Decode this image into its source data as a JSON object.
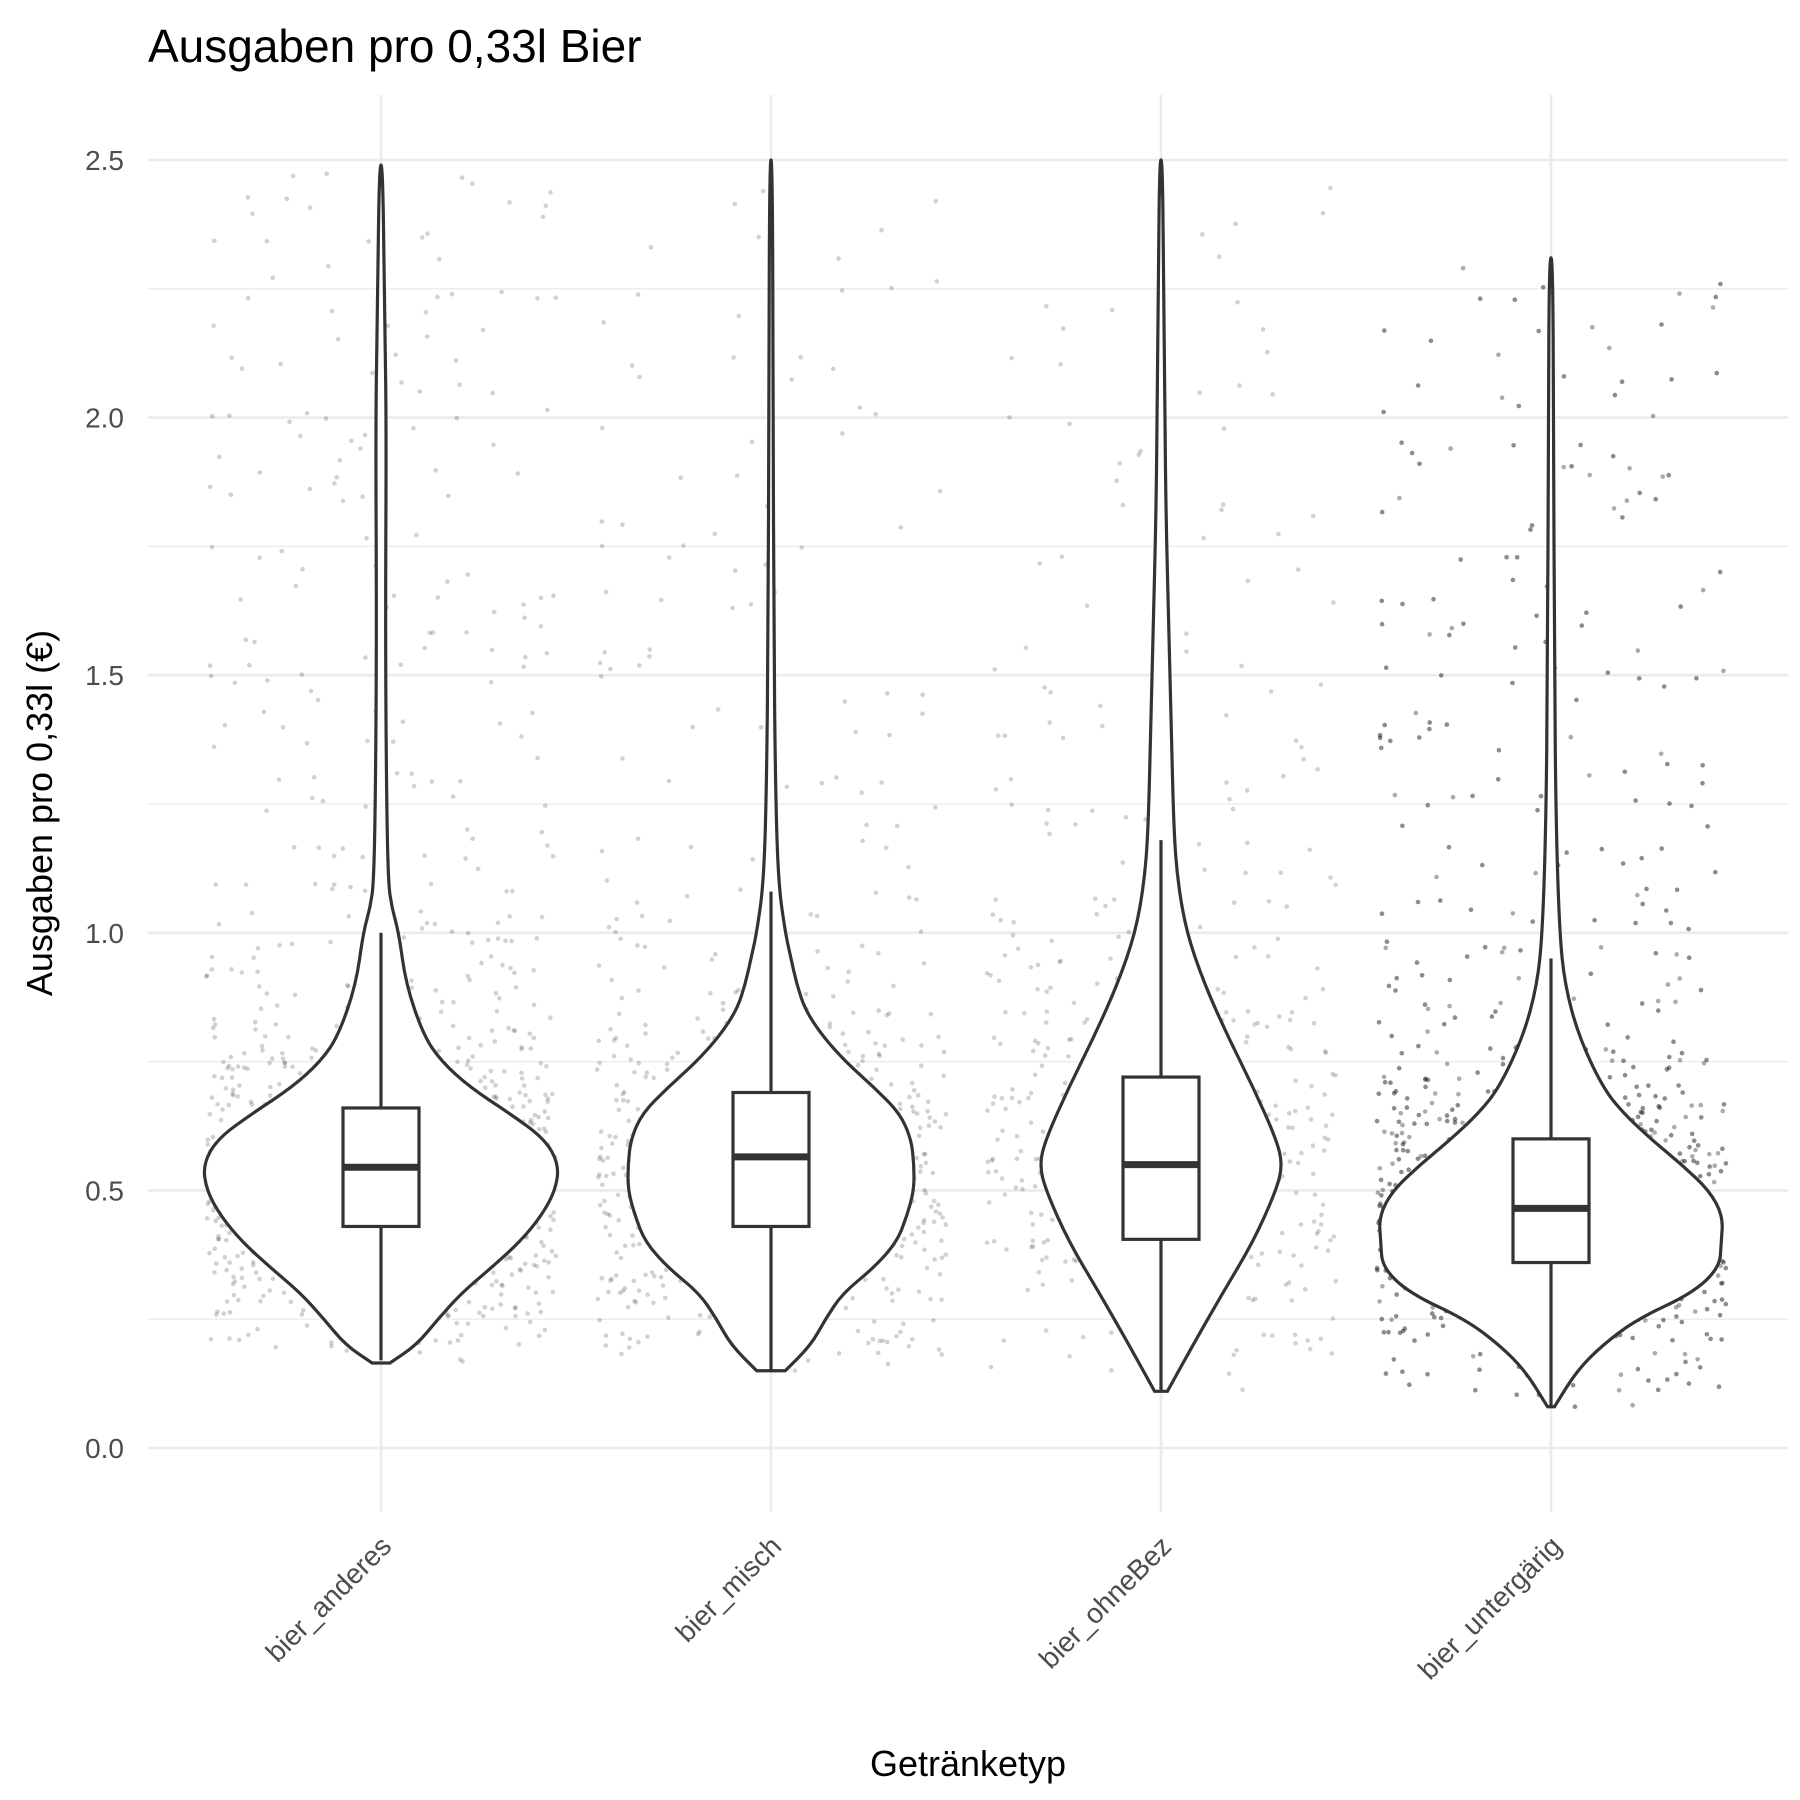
{
  "chart_data": {
    "type": "violin",
    "title": "Ausgaben pro 0,33l Bier",
    "xlabel": "Getränketyp",
    "ylabel": "Ausgaben pro 0,33l (€)",
    "ylim": [
      -0.12,
      2.62
    ],
    "yticks": [
      0.0,
      0.5,
      1.0,
      1.5,
      2.0,
      2.5
    ],
    "ytick_labels": [
      "0.0",
      "0.5",
      "1.0",
      "1.5",
      "2.0",
      "2.5"
    ],
    "grid": true,
    "categories": [
      "bier_anderes",
      "bier_misch",
      "bier_ohneBez",
      "bier_untergärig"
    ],
    "overlays": [
      "violin",
      "boxplot",
      "jittered points"
    ],
    "series": [
      {
        "category": "bier_anderes",
        "box": {
          "whisker_low": 0.17,
          "q1": 0.43,
          "median": 0.545,
          "q3": 0.66,
          "whisker_high": 1.0
        },
        "violin_range": [
          0.165,
          2.49
        ],
        "violin_profile": [
          [
            0.165,
            0.05
          ],
          [
            0.2,
            0.2
          ],
          [
            0.25,
            0.32
          ],
          [
            0.3,
            0.45
          ],
          [
            0.35,
            0.62
          ],
          [
            0.4,
            0.78
          ],
          [
            0.45,
            0.9
          ],
          [
            0.5,
            0.98
          ],
          [
            0.55,
            1.0
          ],
          [
            0.6,
            0.92
          ],
          [
            0.65,
            0.72
          ],
          [
            0.7,
            0.5
          ],
          [
            0.75,
            0.34
          ],
          [
            0.8,
            0.24
          ],
          [
            0.9,
            0.14
          ],
          [
            1.0,
            0.1
          ],
          [
            1.05,
            0.06
          ],
          [
            1.1,
            0.04
          ],
          [
            1.3,
            0.03
          ],
          [
            1.6,
            0.025
          ],
          [
            2.0,
            0.03
          ],
          [
            2.2,
            0.02
          ],
          [
            2.49,
            0.01
          ]
        ],
        "jitter_points": 1100
      },
      {
        "category": "bier_misch",
        "box": {
          "whisker_low": 0.15,
          "q1": 0.43,
          "median": 0.565,
          "q3": 0.69,
          "whisker_high": 1.08
        },
        "violin_range": [
          0.15,
          2.5
        ],
        "violin_profile": [
          [
            0.15,
            0.1
          ],
          [
            0.2,
            0.28
          ],
          [
            0.25,
            0.38
          ],
          [
            0.3,
            0.5
          ],
          [
            0.35,
            0.72
          ],
          [
            0.4,
            0.88
          ],
          [
            0.45,
            0.95
          ],
          [
            0.5,
            1.0
          ],
          [
            0.55,
            1.0
          ],
          [
            0.6,
            0.98
          ],
          [
            0.65,
            0.9
          ],
          [
            0.7,
            0.72
          ],
          [
            0.75,
            0.52
          ],
          [
            0.8,
            0.36
          ],
          [
            0.85,
            0.24
          ],
          [
            0.9,
            0.18
          ],
          [
            0.95,
            0.14
          ],
          [
            1.0,
            0.1
          ],
          [
            1.1,
            0.05
          ],
          [
            1.3,
            0.03
          ],
          [
            1.6,
            0.02
          ],
          [
            2.0,
            0.015
          ],
          [
            2.5,
            0.01
          ]
        ],
        "jitter_points": 800
      },
      {
        "category": "bier_ohneBez",
        "box": {
          "whisker_low": 0.11,
          "q1": 0.405,
          "median": 0.55,
          "q3": 0.72,
          "whisker_high": 1.18
        },
        "violin_range": [
          0.11,
          2.5
        ],
        "violin_profile": [
          [
            0.11,
            0.05
          ],
          [
            0.2,
            0.25
          ],
          [
            0.3,
            0.48
          ],
          [
            0.4,
            0.72
          ],
          [
            0.5,
            0.9
          ],
          [
            0.55,
            0.95
          ],
          [
            0.6,
            0.9
          ],
          [
            0.7,
            0.72
          ],
          [
            0.8,
            0.52
          ],
          [
            0.9,
            0.34
          ],
          [
            1.0,
            0.2
          ],
          [
            1.1,
            0.13
          ],
          [
            1.2,
            0.1
          ],
          [
            1.4,
            0.08
          ],
          [
            1.6,
            0.06
          ],
          [
            1.8,
            0.04
          ],
          [
            2.0,
            0.03
          ],
          [
            2.3,
            0.02
          ],
          [
            2.5,
            0.01
          ]
        ],
        "jitter_points": 450
      },
      {
        "category": "bier_untergärig",
        "box": {
          "whisker_low": 0.08,
          "q1": 0.36,
          "median": 0.465,
          "q3": 0.6,
          "whisker_high": 0.95
        },
        "violin_range": [
          0.08,
          2.31
        ],
        "violin_profile": [
          [
            0.08,
            0.02
          ],
          [
            0.15,
            0.15
          ],
          [
            0.2,
            0.3
          ],
          [
            0.25,
            0.5
          ],
          [
            0.3,
            0.82
          ],
          [
            0.35,
            0.98
          ],
          [
            0.4,
            0.99
          ],
          [
            0.45,
            1.0
          ],
          [
            0.5,
            0.92
          ],
          [
            0.55,
            0.76
          ],
          [
            0.6,
            0.58
          ],
          [
            0.65,
            0.42
          ],
          [
            0.7,
            0.3
          ],
          [
            0.8,
            0.16
          ],
          [
            0.9,
            0.08
          ],
          [
            1.0,
            0.05
          ],
          [
            1.2,
            0.03
          ],
          [
            1.5,
            0.02
          ],
          [
            2.0,
            0.015
          ],
          [
            2.31,
            0.01
          ]
        ],
        "jitter_points": 3000
      }
    ]
  }
}
